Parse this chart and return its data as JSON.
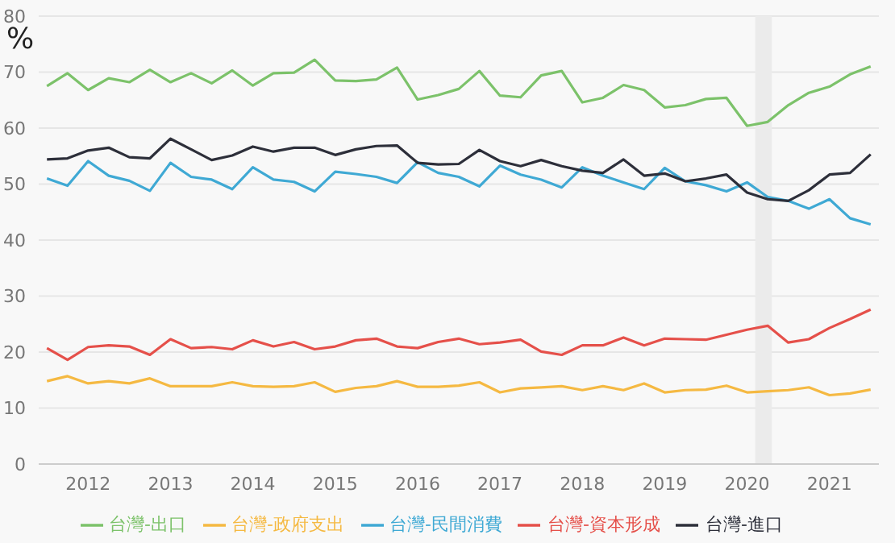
{
  "chart_data": {
    "type": "line",
    "ylabel": "%",
    "x": [
      2011.5,
      2011.75,
      2012,
      2012.25,
      2012.5,
      2012.75,
      2013,
      2013.25,
      2013.5,
      2013.75,
      2014,
      2014.25,
      2014.5,
      2014.75,
      2015,
      2015.25,
      2015.5,
      2015.75,
      2016,
      2016.25,
      2016.5,
      2016.75,
      2017,
      2017.25,
      2017.5,
      2017.75,
      2018,
      2018.25,
      2018.5,
      2018.75,
      2019,
      2019.25,
      2019.5,
      2019.75,
      2020,
      2020.25,
      2020.5,
      2020.75,
      2021,
      2021.25,
      2021.5
    ],
    "series": [
      {
        "name": "台灣-民間消費",
        "color": "#3fa9d4",
        "values": [
          51.0,
          49.7,
          54.1,
          51.5,
          50.6,
          48.8,
          53.8,
          51.3,
          50.8,
          49.1,
          53.0,
          50.8,
          50.4,
          48.7,
          52.2,
          51.8,
          51.3,
          50.2,
          53.9,
          52.0,
          51.3,
          49.6,
          53.3,
          51.7,
          50.8,
          49.4,
          53.0,
          51.5,
          50.3,
          49.1,
          52.9,
          50.5,
          49.8,
          48.7,
          50.3,
          47.7,
          47.0,
          45.6,
          47.3,
          43.9,
          42.8
        ]
      },
      {
        "name": "台灣-政府支出",
        "color": "#f5b942",
        "values": [
          14.8,
          15.7,
          14.4,
          14.8,
          14.4,
          15.3,
          13.9,
          13.9,
          13.9,
          14.6,
          13.9,
          13.8,
          13.9,
          14.6,
          12.9,
          13.6,
          13.9,
          14.8,
          13.8,
          13.8,
          14.0,
          14.6,
          12.8,
          13.5,
          13.7,
          13.9,
          13.2,
          13.9,
          13.2,
          14.4,
          12.8,
          13.2,
          13.3,
          14.0,
          12.8,
          13.0,
          13.2,
          13.7,
          12.3,
          12.6,
          13.3
        ]
      },
      {
        "name": "台灣-資本形成",
        "color": "#e5504a",
        "values": [
          20.7,
          18.6,
          20.9,
          21.2,
          21.0,
          19.5,
          22.3,
          20.7,
          20.9,
          20.5,
          22.1,
          21.0,
          21.8,
          20.5,
          21.0,
          22.1,
          22.4,
          21.0,
          20.7,
          21.8,
          22.4,
          21.4,
          21.7,
          22.2,
          20.1,
          19.5,
          21.2,
          21.2,
          22.6,
          21.2,
          22.4,
          22.3,
          22.2,
          23.1,
          24.0,
          24.7,
          21.7,
          22.3,
          24.3,
          25.9,
          27.6
        ]
      },
      {
        "name": "台灣-出口",
        "color": "#7cc26a",
        "values": [
          67.5,
          69.8,
          66.8,
          68.9,
          68.2,
          70.4,
          68.2,
          69.8,
          68.0,
          70.3,
          67.6,
          69.8,
          69.9,
          72.2,
          68.5,
          68.4,
          68.7,
          70.8,
          65.1,
          65.9,
          67.0,
          70.2,
          65.8,
          65.5,
          69.4,
          70.2,
          64.6,
          65.4,
          67.7,
          66.8,
          63.7,
          64.1,
          65.2,
          65.4,
          60.4,
          61.1,
          64.1,
          66.3,
          67.4,
          69.6,
          71.0
        ]
      },
      {
        "name": "台灣-進口",
        "color": "#2d2f3a",
        "values": [
          54.4,
          54.6,
          56.0,
          56.5,
          54.8,
          54.6,
          58.1,
          56.2,
          54.3,
          55.1,
          56.7,
          55.8,
          56.5,
          56.5,
          55.2,
          56.2,
          56.8,
          56.9,
          53.8,
          53.5,
          53.6,
          56.1,
          54.1,
          53.2,
          54.3,
          53.2,
          52.4,
          52.0,
          54.4,
          51.5,
          51.9,
          50.5,
          51.0,
          51.7,
          48.5,
          47.3,
          47.0,
          48.9,
          51.7,
          52.0,
          55.3
        ]
      }
    ],
    "xlim": [
      2011.4,
      2021.6
    ],
    "xticks": [
      2012,
      2013,
      2014,
      2015,
      2016,
      2017,
      2018,
      2019,
      2020,
      2021
    ],
    "ylim": [
      0,
      80
    ],
    "yticks": [
      0,
      10,
      20,
      30,
      40,
      50,
      60,
      70,
      80
    ],
    "bands": [
      {
        "axis": "x",
        "from": 2020.1,
        "to": 2020.3,
        "color": "#ebebeb"
      }
    ],
    "grid": "y",
    "legend": "bottom",
    "marker": "none",
    "line_style": "solid"
  }
}
